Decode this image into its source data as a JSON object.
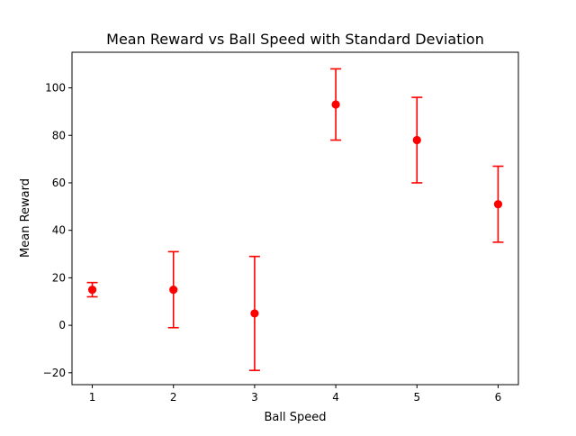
{
  "chart_data": {
    "type": "scatter",
    "title": "Mean Reward vs Ball Speed with Standard Deviation",
    "xlabel": "Ball Speed",
    "ylabel": "Mean Reward",
    "xlim": [
      0.75,
      6.25
    ],
    "ylim": [
      -25,
      115
    ],
    "xticks": [
      1,
      2,
      3,
      4,
      5,
      6
    ],
    "yticks": [
      -20,
      0,
      20,
      40,
      60,
      80,
      100
    ],
    "xtick_labels": [
      "1",
      "2",
      "3",
      "4",
      "5",
      "6"
    ],
    "ytick_labels": [
      "−20",
      "0",
      "20",
      "40",
      "60",
      "80",
      "100"
    ],
    "grid": false,
    "series": [
      {
        "x": [
          1,
          2,
          3,
          4,
          5,
          6
        ],
        "y": [
          15,
          15,
          5,
          93,
          78,
          51
        ],
        "yerr": [
          3,
          16,
          24,
          15,
          18,
          16
        ],
        "color": "#ff0000",
        "marker": "circle",
        "errorbar_caps": true
      }
    ]
  }
}
